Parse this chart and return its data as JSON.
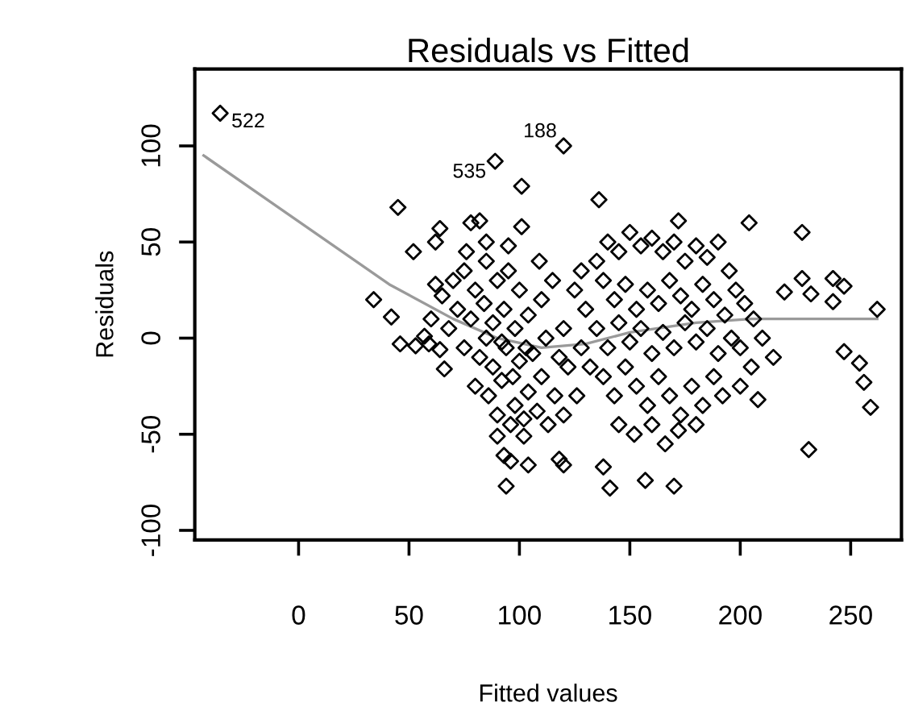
{
  "chart_data": {
    "type": "scatter",
    "title": "Residuals vs Fitted",
    "xlabel": "Fitted values",
    "ylabel": "Residuals",
    "xlim": [
      -47,
      273
    ],
    "ylim": [
      -105,
      140
    ],
    "xticks": [
      0,
      50,
      100,
      150,
      200,
      250
    ],
    "yticks": [
      -100,
      -50,
      0,
      50,
      100
    ],
    "grid": false,
    "legend": false,
    "series": [
      {
        "marker": "diamond",
        "color": "#000000",
        "x": [
          -35.5,
          89,
          120,
          101,
          136,
          45,
          64,
          62,
          52,
          78,
          82,
          101,
          34,
          42,
          46,
          53,
          57,
          59,
          64,
          66,
          90,
          102,
          93,
          96,
          104,
          94,
          172,
          204,
          228,
          220,
          228,
          232,
          242,
          247,
          242,
          262,
          247,
          254,
          256,
          259,
          231,
          215,
          208,
          118,
          120,
          138,
          141,
          157,
          170,
          70,
          75,
          80,
          85,
          90,
          95,
          100,
          72,
          78,
          84,
          88,
          93,
          98,
          104,
          110,
          115,
          75,
          82,
          88,
          94,
          100,
          106,
          112,
          118,
          80,
          86,
          92,
          98,
          104,
          110,
          116,
          122,
          90,
          96,
          102,
          108,
          85,
          92,
          97,
          103,
          68,
          65,
          120,
          125,
          128,
          60,
          62,
          109,
          95,
          85,
          76,
          113,
          120,
          126,
          135,
          140,
          145,
          150,
          155,
          160,
          165,
          170,
          175,
          180,
          185,
          190,
          195,
          138,
          143,
          148,
          153,
          158,
          163,
          168,
          173,
          178,
          183,
          188,
          193,
          198,
          202,
          135,
          140,
          145,
          150,
          155,
          160,
          165,
          170,
          175,
          180,
          185,
          190,
          196,
          200,
          138,
          143,
          148,
          153,
          158,
          163,
          168,
          173,
          178,
          183,
          188,
          192,
          200,
          145,
          152,
          160,
          166,
          172,
          180,
          130,
          132,
          206,
          210,
          205,
          128
        ],
        "values": [
          117,
          92,
          100,
          79,
          72,
          68,
          57,
          50,
          45,
          60,
          61,
          58,
          20,
          11,
          -3,
          -4,
          1,
          -3,
          -6,
          -16,
          -51,
          -51,
          -61,
          -64,
          -66,
          -77,
          61,
          60,
          55,
          24,
          31,
          23,
          31,
          27,
          19,
          15,
          -7,
          -13,
          -23,
          -36,
          -58,
          -10,
          -32,
          -63,
          -66,
          -67,
          -78,
          -74,
          -77,
          30,
          35,
          25,
          40,
          30,
          35,
          25,
          15,
          10,
          18,
          8,
          15,
          5,
          12,
          20,
          30,
          -5,
          -10,
          -15,
          -5,
          -12,
          -8,
          0,
          -10,
          -25,
          -30,
          -22,
          -35,
          -28,
          -20,
          -30,
          -15,
          -40,
          -45,
          -42,
          -38,
          0,
          -2,
          -20,
          -5,
          5,
          22,
          5,
          25,
          -5,
          10,
          28,
          40,
          48,
          50,
          45,
          -45,
          -40,
          -30,
          40,
          50,
          45,
          55,
          48,
          52,
          45,
          50,
          40,
          48,
          42,
          50,
          35,
          30,
          20,
          28,
          15,
          25,
          18,
          30,
          22,
          15,
          28,
          20,
          12,
          25,
          18,
          5,
          -5,
          8,
          -2,
          5,
          -8,
          3,
          -5,
          8,
          -2,
          5,
          -8,
          0,
          -5,
          -20,
          -30,
          -15,
          -25,
          -35,
          -20,
          -30,
          -40,
          -25,
          -35,
          -20,
          -30,
          -25,
          -45,
          -50,
          -45,
          -55,
          -48,
          -45,
          15,
          -15,
          10,
          0,
          -15,
          35
        ]
      },
      {
        "type": "line",
        "marker": "none",
        "color": "#9a9a9a",
        "x": [
          -43,
          41,
          70,
          90,
          110,
          130,
          150,
          180,
          205,
          262
        ],
        "values": [
          95,
          28,
          10,
          0,
          -5,
          -3,
          3,
          8,
          10,
          10
        ]
      }
    ],
    "annotations": [
      {
        "text": "522",
        "x": -35.5,
        "y": 117
      },
      {
        "text": "535",
        "x": 89,
        "y": 92
      },
      {
        "text": "188",
        "x": 120,
        "y": 100
      }
    ]
  }
}
